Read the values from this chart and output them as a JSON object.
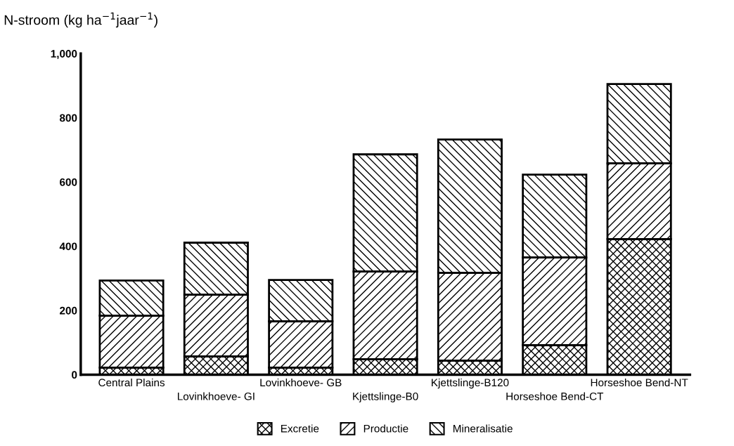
{
  "chart_data": {
    "type": "bar",
    "stacked": true,
    "ylabel": "N-stroom (kg ha$^{−1}$jaar$^{−1}$)",
    "categories": [
      "Central Plains",
      "Lovinkhoeve- GI",
      "Lovinkhoeve- GB",
      "Kjettslinge-B0",
      "Kjettslinge-B120",
      "Horseshoe Bend-CT",
      "Horseshoe Bend-NT"
    ],
    "series": [
      {
        "name": "Excretie",
        "color": "#000000",
        "values": [
          22,
          57,
          22,
          48,
          44,
          92,
          422
        ]
      },
      {
        "name": "Productie",
        "color": "#000000",
        "values": [
          162,
          192,
          144,
          273,
          273,
          273,
          236
        ]
      },
      {
        "name": "Mineralisatie",
        "color": "#000000",
        "values": [
          109,
          162,
          129,
          365,
          415,
          258,
          247
        ]
      }
    ],
    "ylim": [
      0,
      1000
    ],
    "yticks": [
      0,
      200,
      400,
      600,
      800,
      {
        "value": 1000,
        "label": "1,000"
      }
    ],
    "grid": false,
    "legend": "bottom"
  }
}
